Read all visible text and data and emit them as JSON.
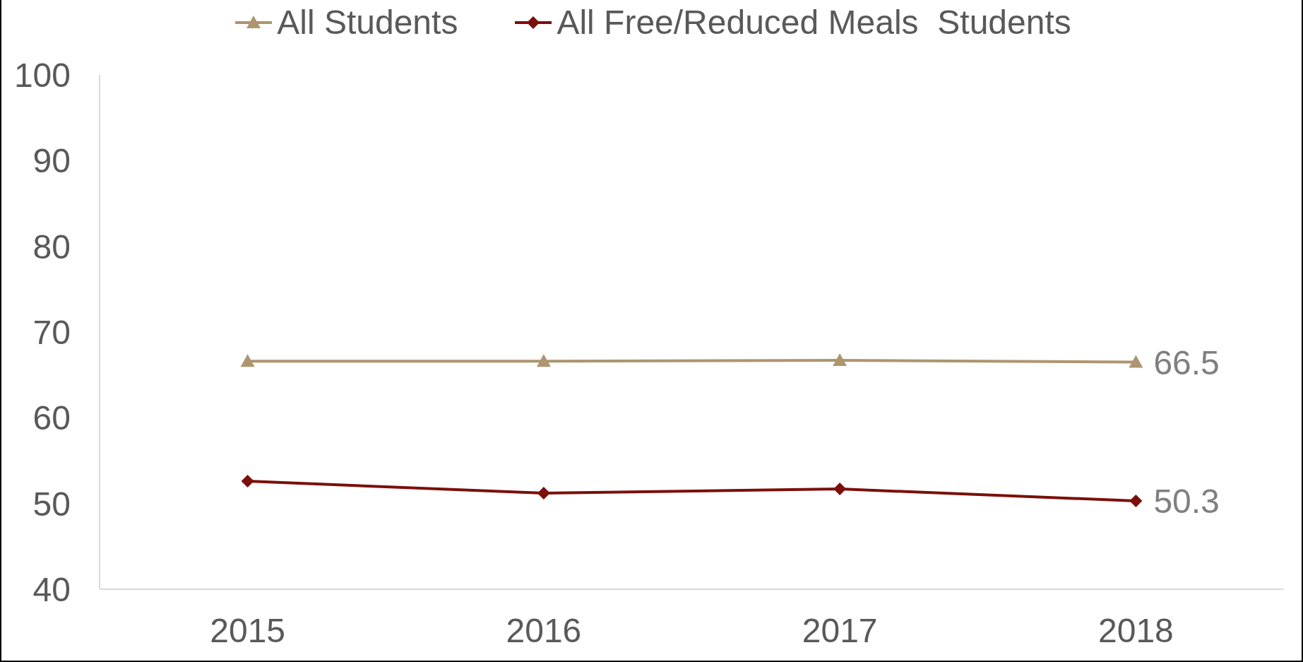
{
  "chart_data": {
    "type": "line",
    "categories": [
      "2015",
      "2016",
      "2017",
      "2018"
    ],
    "series": [
      {
        "name": "All Students",
        "color": "#ae9570",
        "values": [
          66.6,
          66.6,
          66.7,
          66.5
        ],
        "marker": "triangle",
        "value_labels": [
          null,
          null,
          null,
          "66.5"
        ]
      },
      {
        "name": "All Free/Reduced Meals  Students",
        "color": "#7b0f0a",
        "values": [
          52.6,
          51.2,
          51.7,
          50.3
        ],
        "marker": "diamond",
        "value_labels": [
          null,
          null,
          null,
          "50.3"
        ]
      }
    ],
    "ylim": [
      40,
      100
    ],
    "yticks": [
      40,
      50,
      60,
      70,
      80,
      90,
      100
    ],
    "legend": "top",
    "line_style": "solid"
  }
}
